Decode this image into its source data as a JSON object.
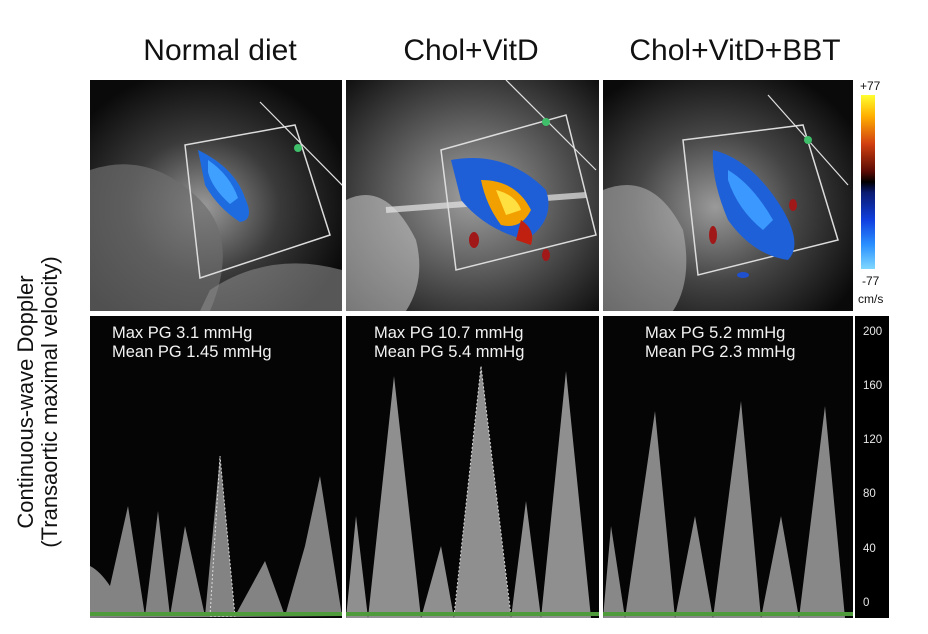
{
  "columns": [
    {
      "title": "Normal diet",
      "max_pg": "Max PG 3.1 mmHg",
      "mean_pg": "Mean PG 1.45 mmHg"
    },
    {
      "title": "Chol+VitD",
      "max_pg": "Max PG 10.7 mmHg",
      "mean_pg": "Mean PG 5.4 mmHg"
    },
    {
      "title": "Chol+VitD+BBT",
      "max_pg": "Max PG 5.2 mmHg",
      "mean_pg": "Mean PG 2.3 mmHg"
    }
  ],
  "y_axis_label": {
    "line1": "Continuous-wave Doppler",
    "line2": "(Transaortic maximal velocity)"
  },
  "color_scale": {
    "top": "+77",
    "bottom": "-77",
    "unit": "cm/s"
  },
  "velocity_ticks": [
    "200",
    "160",
    "120",
    "80",
    "40",
    "0"
  ],
  "colors": {
    "background": "#ffffff",
    "panel": "#050505",
    "baseline": "#4f9a3b"
  }
}
